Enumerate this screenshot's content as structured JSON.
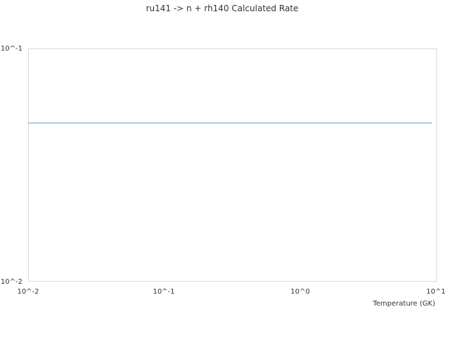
{
  "chart_data": {
    "type": "line",
    "title": "ru141 -> n + rh140 Calculated Rate",
    "xlabel": "Temperature (GK)",
    "ylabel": "",
    "xscale": "log",
    "yscale": "log",
    "xlim": [
      0.01,
      10
    ],
    "ylim": [
      0.01,
      0.1
    ],
    "x_ticks": [
      "10^-2",
      "10^-1",
      "10^0",
      "10^1"
    ],
    "y_ticks": [
      "10^-2",
      "10^-1"
    ],
    "grid": false,
    "legend": "none",
    "series": [
      {
        "color": "#5b9bd5",
        "x": [
          0.01,
          9.3
        ],
        "y": [
          0.0478,
          0.0478
        ]
      }
    ]
  }
}
